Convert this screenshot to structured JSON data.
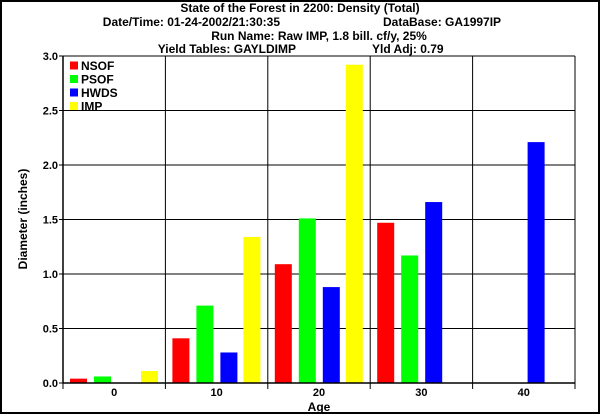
{
  "chart_data": {
    "type": "bar",
    "title": "State of the Forest in 2200: Density (Total)",
    "subtitle_lines": [
      {
        "left": "Date/Time: 01-24-2002/21:30:35",
        "right": "DataBase: GA1997IP"
      },
      {
        "left": "Run Name: Raw IMP, 1.8 bill. cf/y, 25%",
        "right": ""
      },
      {
        "left": "Yield Tables: GAYLDIMP",
        "right": "Yld Adj: 0.79"
      }
    ],
    "xlabel": "Age",
    "ylabel": "Diameter (inches)",
    "ylim": [
      0,
      3.0
    ],
    "yticks": [
      "0.0",
      "0.5",
      "1.0",
      "1.5",
      "2.0",
      "2.5",
      "3.0"
    ],
    "categories": [
      "0",
      "10",
      "20",
      "30",
      "40"
    ],
    "grid": true,
    "legend_placement": "top-left",
    "series": [
      {
        "name": "NSOF",
        "color": "#ff0000",
        "values": [
          0.04,
          0.41,
          1.09,
          1.47,
          0
        ]
      },
      {
        "name": "PSOF",
        "color": "#00ff00",
        "values": [
          0.06,
          0.71,
          1.51,
          1.17,
          0
        ]
      },
      {
        "name": "HWDS",
        "color": "#0000ff",
        "values": [
          0,
          0.28,
          0.88,
          1.66,
          2.21
        ]
      },
      {
        "name": "IMP",
        "color": "#ffff00",
        "values": [
          0.11,
          1.34,
          2.92,
          0,
          0
        ]
      }
    ]
  }
}
